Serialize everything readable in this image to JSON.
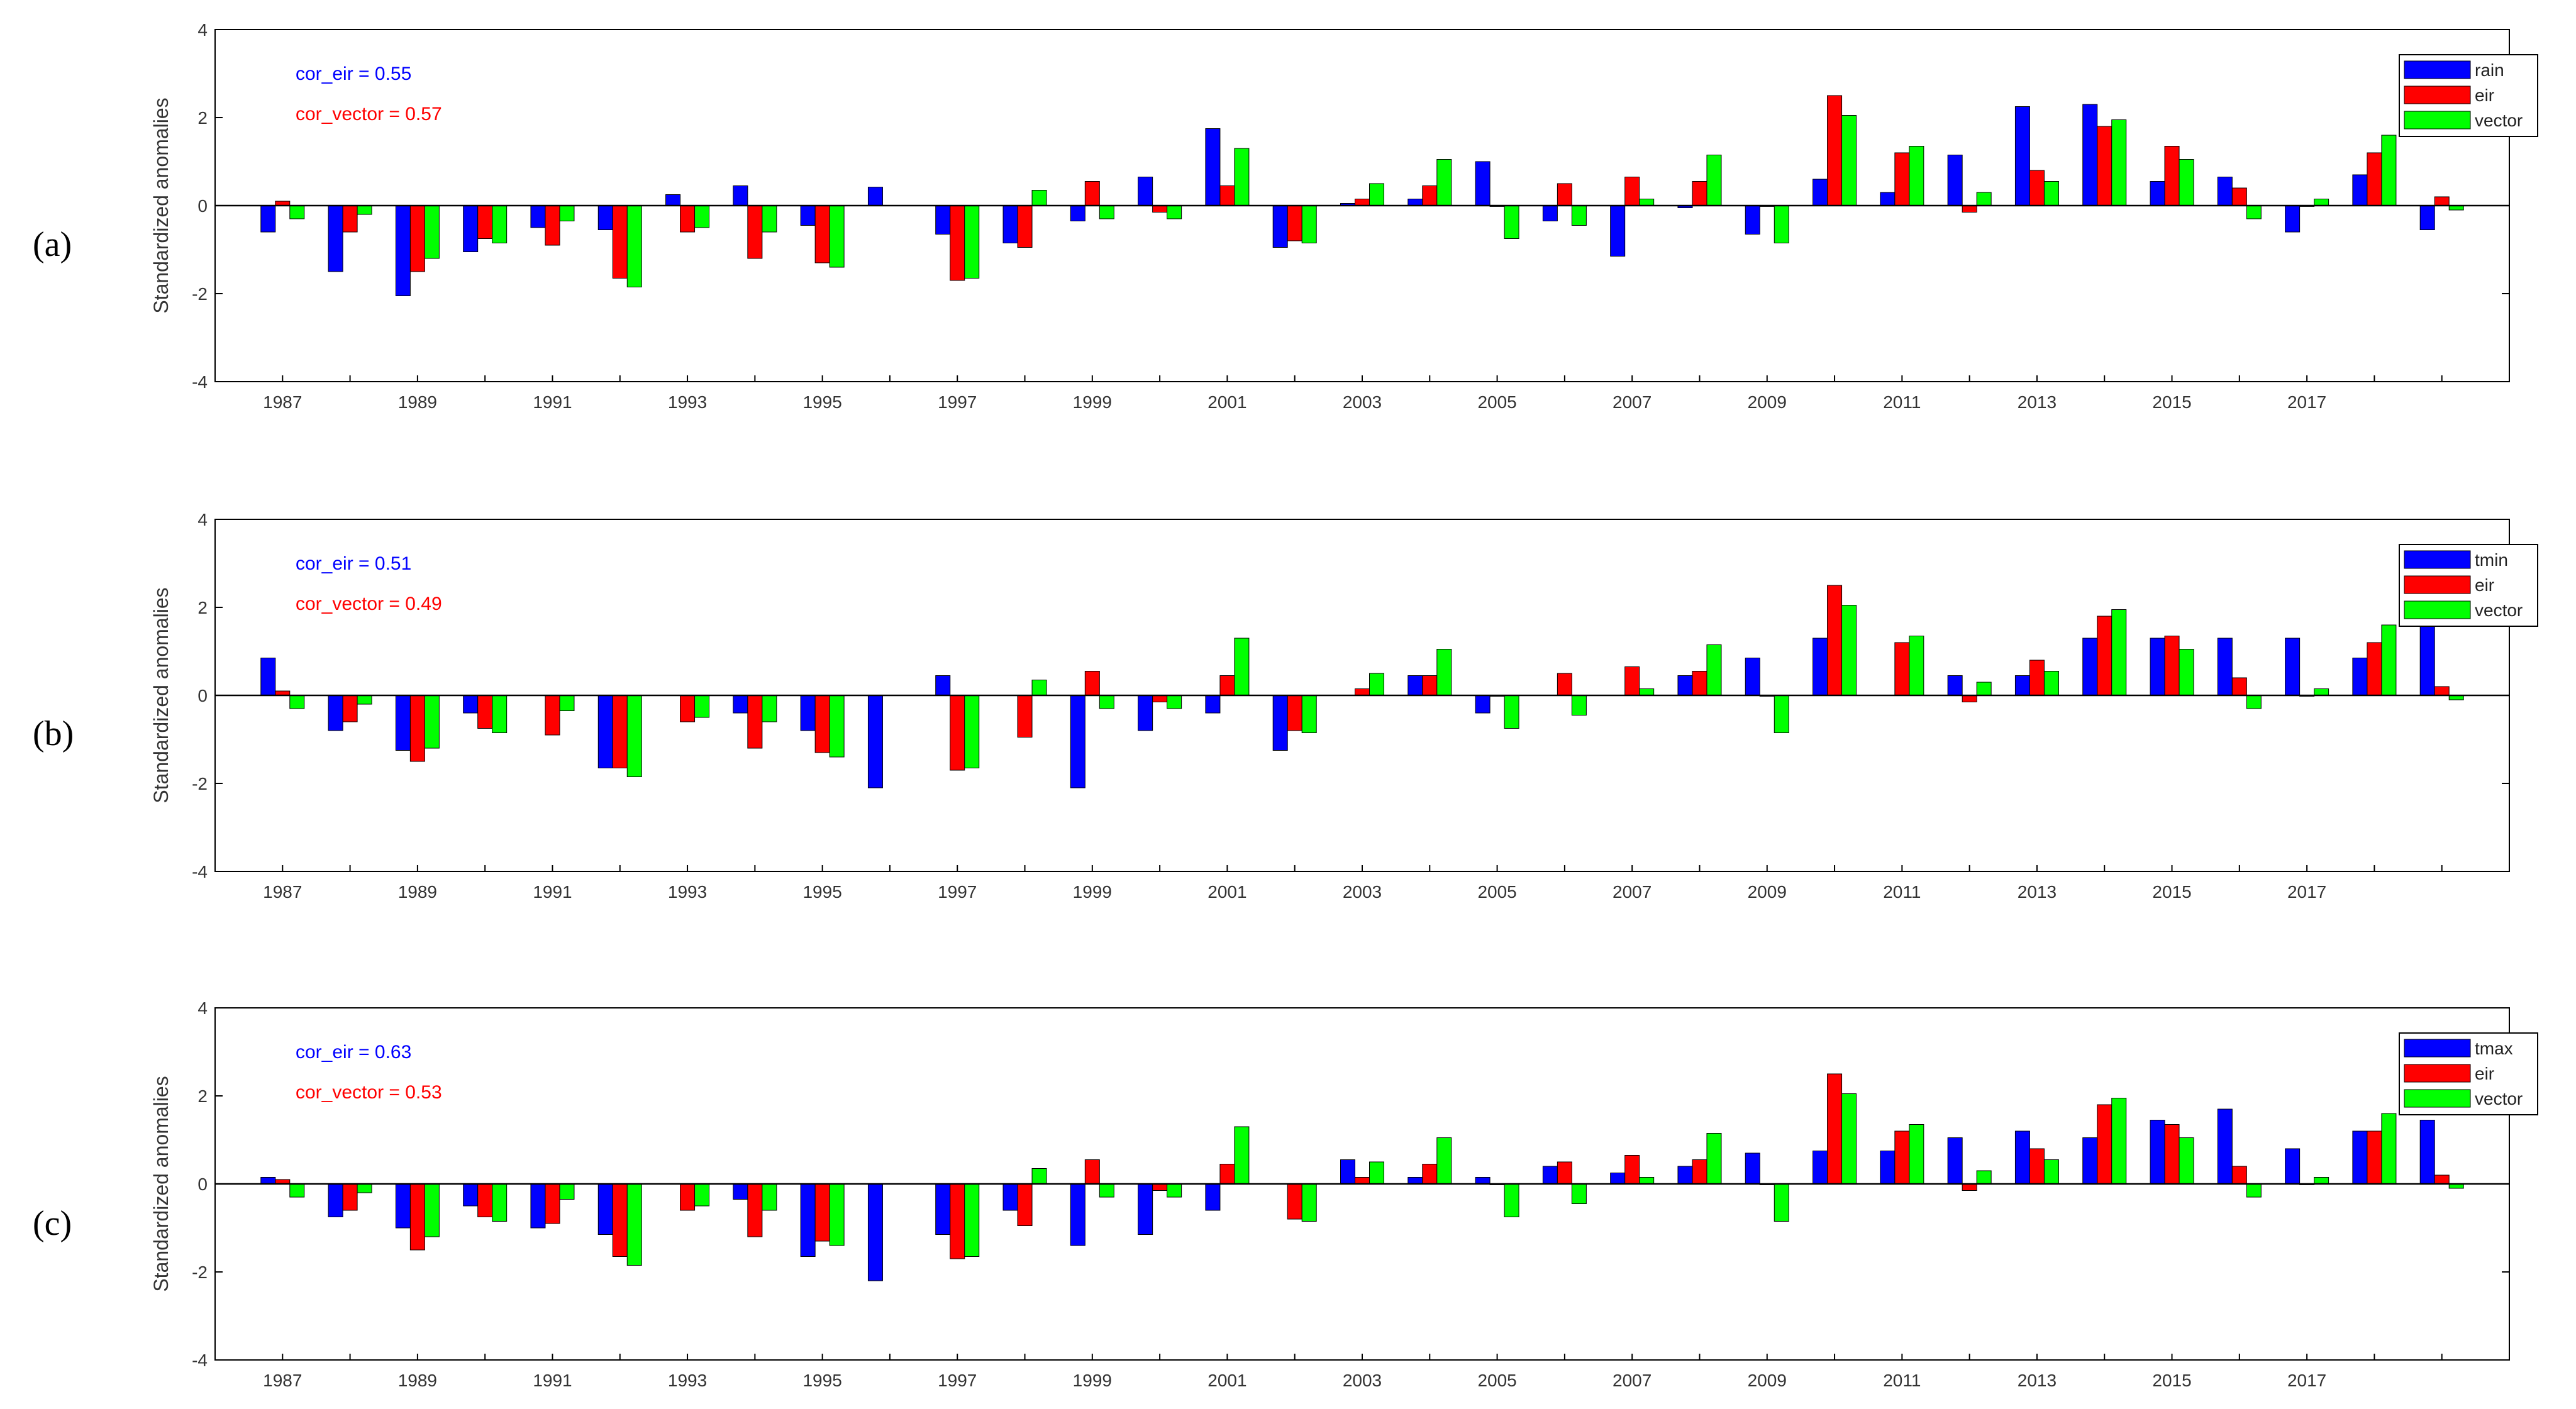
{
  "figure": {
    "colors": {
      "rain": "#0000ff",
      "tmin": "#0000ff",
      "tmax": "#0000ff",
      "eir": "#ff0000",
      "vector": "#00ff00"
    }
  },
  "chart_data": [
    {
      "type": "bar",
      "panel_label": "(a)",
      "ylabel": "Standardized anomalies",
      "ylim": [
        -4,
        4
      ],
      "yticks": [
        "-4",
        "-2",
        "0",
        "2",
        "4"
      ],
      "x": [
        1987,
        1988,
        1989,
        1990,
        1991,
        1992,
        1993,
        1994,
        1995,
        1996,
        1997,
        1998,
        1999,
        2000,
        2001,
        2002,
        2003,
        2004,
        2005,
        2006,
        2007,
        2008,
        2009,
        2010,
        2011,
        2012,
        2013,
        2014,
        2015,
        2016,
        2017,
        2018,
        2019
      ],
      "xticks": [
        "1987",
        "1989",
        "1991",
        "1993",
        "1995",
        "1997",
        "1999",
        "2001",
        "2003",
        "2005",
        "2007",
        "2009",
        "2011",
        "2013",
        "2015",
        "2017"
      ],
      "legend_position": "top-right",
      "annotations": [
        {
          "text": "cor_eir = 0.55",
          "color": "#0000ff"
        },
        {
          "text": "cor_vector = 0.57",
          "color": "#ff0000"
        }
      ],
      "series": [
        {
          "name": "rain",
          "color": "#0000ff",
          "values": [
            -0.6,
            -1.5,
            -2.05,
            -1.05,
            -0.5,
            -0.55,
            0.25,
            0.45,
            -0.45,
            0.42,
            -0.65,
            -0.85,
            -0.35,
            0.65,
            1.75,
            -0.95,
            0.05,
            0.15,
            1.0,
            -0.35,
            -1.15,
            -0.05,
            -0.65,
            0.6,
            0.3,
            1.15,
            2.25,
            2.3,
            0.55,
            0.65,
            -0.6,
            0.7,
            -0.55
          ]
        },
        {
          "name": "eir",
          "color": "#ff0000",
          "values": [
            0.1,
            -0.6,
            -1.5,
            -0.75,
            -0.9,
            -1.65,
            -0.6,
            -1.2,
            -1.3,
            0.0,
            -1.7,
            -0.95,
            0.55,
            -0.15,
            0.45,
            -0.8,
            0.15,
            0.45,
            -0.02,
            0.5,
            0.65,
            0.55,
            -0.02,
            2.5,
            1.2,
            -0.15,
            0.8,
            1.8,
            1.35,
            0.4,
            -0.02,
            1.2,
            0.2
          ]
        },
        {
          "name": "vector",
          "color": "#00ff00",
          "values": [
            -0.3,
            -0.2,
            -1.2,
            -0.85,
            -0.35,
            -1.85,
            -0.5,
            -0.6,
            -1.4,
            0.0,
            -1.65,
            0.35,
            -0.3,
            -0.3,
            1.3,
            -0.85,
            0.5,
            1.05,
            -0.75,
            -0.45,
            0.15,
            1.15,
            -0.85,
            2.05,
            1.35,
            0.3,
            0.55,
            1.95,
            1.05,
            -0.3,
            0.15,
            1.6,
            -0.1
          ]
        }
      ]
    },
    {
      "type": "bar",
      "panel_label": "(b)",
      "ylabel": "Standardized anomalies",
      "ylim": [
        -4,
        4
      ],
      "yticks": [
        "-4",
        "-2",
        "0",
        "2",
        "4"
      ],
      "x": [
        1987,
        1988,
        1989,
        1990,
        1991,
        1992,
        1993,
        1994,
        1995,
        1996,
        1997,
        1998,
        1999,
        2000,
        2001,
        2002,
        2003,
        2004,
        2005,
        2006,
        2007,
        2008,
        2009,
        2010,
        2011,
        2012,
        2013,
        2014,
        2015,
        2016,
        2017,
        2018,
        2019
      ],
      "xticks": [
        "1987",
        "1989",
        "1991",
        "1993",
        "1995",
        "1997",
        "1999",
        "2001",
        "2003",
        "2005",
        "2007",
        "2009",
        "2011",
        "2013",
        "2015",
        "2017"
      ],
      "legend_position": "top-right",
      "annotations": [
        {
          "text": "cor_eir = 0.51",
          "color": "#0000ff"
        },
        {
          "text": "cor_vector = 0.49",
          "color": "#ff0000"
        }
      ],
      "series": [
        {
          "name": "tmin",
          "color": "#0000ff",
          "values": [
            0.85,
            -0.8,
            -1.25,
            -0.4,
            0.0,
            -1.65,
            0.0,
            -0.4,
            -0.8,
            -2.1,
            0.45,
            0.0,
            -2.1,
            -0.8,
            -0.4,
            -1.25,
            0.0,
            0.45,
            -0.4,
            0.0,
            0.0,
            0.45,
            0.85,
            1.3,
            0.0,
            0.45,
            0.45,
            1.3,
            1.3,
            1.3,
            1.3,
            0.85,
            1.75
          ]
        },
        {
          "name": "eir",
          "color": "#ff0000",
          "values": [
            0.1,
            -0.6,
            -1.5,
            -0.75,
            -0.9,
            -1.65,
            -0.6,
            -1.2,
            -1.3,
            0.0,
            -1.7,
            -0.95,
            0.55,
            -0.15,
            0.45,
            -0.8,
            0.15,
            0.45,
            -0.02,
            0.5,
            0.65,
            0.55,
            -0.02,
            2.5,
            1.2,
            -0.15,
            0.8,
            1.8,
            1.35,
            0.4,
            -0.02,
            1.2,
            0.2
          ]
        },
        {
          "name": "vector",
          "color": "#00ff00",
          "values": [
            -0.3,
            -0.2,
            -1.2,
            -0.85,
            -0.35,
            -1.85,
            -0.5,
            -0.6,
            -1.4,
            0.0,
            -1.65,
            0.35,
            -0.3,
            -0.3,
            1.3,
            -0.85,
            0.5,
            1.05,
            -0.75,
            -0.45,
            0.15,
            1.15,
            -0.85,
            2.05,
            1.35,
            0.3,
            0.55,
            1.95,
            1.05,
            -0.3,
            0.15,
            1.6,
            -0.1
          ]
        }
      ]
    },
    {
      "type": "bar",
      "panel_label": "(c)",
      "ylabel": "Standardized anomalies",
      "ylim": [
        -4,
        4
      ],
      "yticks": [
        "-4",
        "-2",
        "0",
        "2",
        "4"
      ],
      "x": [
        1987,
        1988,
        1989,
        1990,
        1991,
        1992,
        1993,
        1994,
        1995,
        1996,
        1997,
        1998,
        1999,
        2000,
        2001,
        2002,
        2003,
        2004,
        2005,
        2006,
        2007,
        2008,
        2009,
        2010,
        2011,
        2012,
        2013,
        2014,
        2015,
        2016,
        2017,
        2018,
        2019
      ],
      "xticks": [
        "1987",
        "1989",
        "1991",
        "1993",
        "1995",
        "1997",
        "1999",
        "2001",
        "2003",
        "2005",
        "2007",
        "2009",
        "2011",
        "2013",
        "2015",
        "2017"
      ],
      "legend_position": "top-right",
      "annotations": [
        {
          "text": "cor_eir = 0.63",
          "color": "#0000ff"
        },
        {
          "text": "cor_vector = 0.53",
          "color": "#ff0000"
        }
      ],
      "series": [
        {
          "name": "tmax",
          "color": "#0000ff",
          "values": [
            0.15,
            -0.75,
            -1.0,
            -0.5,
            -1.0,
            -1.15,
            0.0,
            -0.35,
            -1.65,
            -2.2,
            -1.15,
            -0.6,
            -1.4,
            -1.15,
            -0.6,
            0.0,
            0.55,
            0.15,
            0.15,
            0.4,
            0.25,
            0.4,
            0.7,
            0.75,
            0.75,
            1.05,
            1.2,
            1.05,
            1.45,
            1.7,
            0.8,
            1.2,
            1.45
          ]
        },
        {
          "name": "eir",
          "color": "#ff0000",
          "values": [
            0.1,
            -0.6,
            -1.5,
            -0.75,
            -0.9,
            -1.65,
            -0.6,
            -1.2,
            -1.3,
            0.0,
            -1.7,
            -0.95,
            0.55,
            -0.15,
            0.45,
            -0.8,
            0.15,
            0.45,
            -0.02,
            0.5,
            0.65,
            0.55,
            -0.02,
            2.5,
            1.2,
            -0.15,
            0.8,
            1.8,
            1.35,
            0.4,
            -0.02,
            1.2,
            0.2
          ]
        },
        {
          "name": "vector",
          "color": "#00ff00",
          "values": [
            -0.3,
            -0.2,
            -1.2,
            -0.85,
            -0.35,
            -1.85,
            -0.5,
            -0.6,
            -1.4,
            0.0,
            -1.65,
            0.35,
            -0.3,
            -0.3,
            1.3,
            -0.85,
            0.5,
            1.05,
            -0.75,
            -0.45,
            0.15,
            1.15,
            -0.85,
            2.05,
            1.35,
            0.3,
            0.55,
            1.95,
            1.05,
            -0.3,
            0.15,
            1.6,
            -0.1
          ]
        }
      ]
    }
  ]
}
